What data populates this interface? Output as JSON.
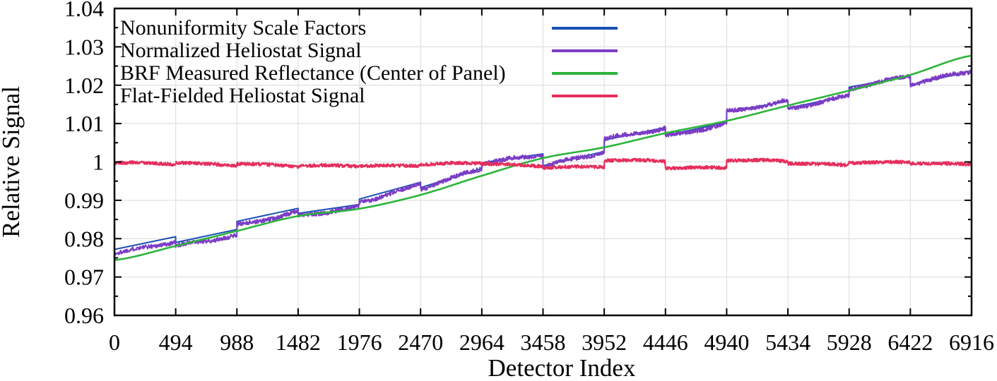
{
  "figure": {
    "background": "#ffffff",
    "text_color": "#000000",
    "grid_color": "#e4e4e4",
    "frame_color": "#000000"
  },
  "chart_data": {
    "type": "line",
    "title": "",
    "xlabel": "Detector Index",
    "ylabel": "Relative Signal",
    "xlim": [
      0,
      6916
    ],
    "ylim": [
      0.96,
      1.04
    ],
    "grid": true,
    "tick_style": "inward-mirrored",
    "legend_position": "top-left-inside",
    "x_ticks": [
      0,
      494,
      988,
      1482,
      1976,
      2470,
      2964,
      3458,
      3952,
      4446,
      4940,
      5434,
      5928,
      6422,
      6916
    ],
    "x_tick_labels": [
      "0",
      "494",
      "988",
      "1482",
      "1976",
      "2470",
      "2964",
      "3458",
      "3952",
      "4446",
      "4940",
      "5434",
      "5928",
      "6422",
      "6916"
    ],
    "y_ticks": [
      0.96,
      0.97,
      0.98,
      0.99,
      1.0,
      1.01,
      1.02,
      1.03,
      1.04
    ],
    "y_tick_labels": [
      "0.96",
      "0.97",
      "0.98",
      "0.99",
      "1",
      "1.01",
      "1.02",
      "1.03",
      "1.04"
    ],
    "y_minor_ticks": [
      0.965,
      0.975,
      0.985,
      0.995,
      1.005,
      1.015,
      1.025,
      1.035
    ],
    "panel_width_detectors": 494,
    "panel_count": 14,
    "series": [
      {
        "name": "Nonuniformity Scale Factors",
        "color": "#1a51b3",
        "style": "piecewise-linear-steps",
        "line_width": 2.0,
        "panel_values": [
          [
            0.9772,
            0.9805
          ],
          [
            0.979,
            0.9824
          ],
          [
            0.9845,
            0.9879
          ],
          [
            0.9866,
            0.9889
          ],
          [
            0.9903,
            0.9947
          ],
          [
            0.9933,
            0.9983
          ],
          [
            0.9998,
            1.0021
          ],
          [
            0.999,
            1.0027
          ],
          [
            1.0057,
            1.009
          ],
          [
            1.0069,
            1.0103
          ],
          [
            1.0131,
            1.0158
          ],
          [
            1.014,
            1.0174
          ],
          [
            1.0195,
            1.0223
          ],
          [
            1.0201,
            1.0237
          ]
        ]
      },
      {
        "name": "Normalized Heliostat Signal",
        "color": "#7d3cc6",
        "style": "noisy-piecewise-linear-steps",
        "line_width": 2.0,
        "noise_amplitude": 0.00055,
        "offset_per_panel": [
          -0.0013,
          -0.0012,
          -0.0009,
          -0.0008,
          -0.0006,
          -0.0003,
          -0.0002,
          -0.0001,
          -0.0001,
          -0.0001,
          -0.0001,
          -0.0001,
          -0.0001,
          -0.0001
        ],
        "panel_values": [
          [
            0.9772,
            0.9805
          ],
          [
            0.979,
            0.9824
          ],
          [
            0.9845,
            0.9879
          ],
          [
            0.9866,
            0.9889
          ],
          [
            0.9903,
            0.9947
          ],
          [
            0.9933,
            0.9983
          ],
          [
            0.9998,
            1.0021
          ],
          [
            0.999,
            1.0027
          ],
          [
            1.0057,
            1.009
          ],
          [
            1.0069,
            1.0103
          ],
          [
            1.0131,
            1.0158
          ],
          [
            1.014,
            1.0174
          ],
          [
            1.0195,
            1.0223
          ],
          [
            1.0201,
            1.0237
          ]
        ]
      },
      {
        "name": "BRF Measured Reflectance (Center of Panel)",
        "color": "#2db43c",
        "style": "smooth",
        "line_width": 2.6,
        "x_points": [
          0,
          494,
          988,
          1482,
          1976,
          2470,
          2964,
          3458,
          3952,
          4446,
          4940,
          5434,
          5928,
          6422,
          6916
        ],
        "y_points": [
          0.9744,
          0.9781,
          0.982,
          0.9859,
          0.9878,
          0.9914,
          0.9964,
          1.001,
          1.0038,
          1.0075,
          1.0107,
          1.0147,
          1.0186,
          1.0227,
          1.0277
        ]
      },
      {
        "name": "Flat-Fielded Heliostat Signal",
        "color": "#e62e5c",
        "style": "noisy-piecewise-linear-steps",
        "line_width": 2.2,
        "noise_amplitude": 0.00042,
        "offset_per_panel": [
          0,
          0,
          0,
          0,
          0,
          0,
          0,
          0,
          0,
          0,
          0,
          0,
          0,
          0
        ],
        "panel_values": [
          [
            0.9997,
            0.9993
          ],
          [
            0.9996,
            0.9993
          ],
          [
            0.9997,
            0.9988
          ],
          [
            0.9987,
            0.9989
          ],
          [
            0.9991,
            0.9992
          ],
          [
            0.9993,
            0.9995
          ],
          [
            0.9995,
            0.999
          ],
          [
            0.9988,
            0.9986
          ],
          [
            1.0003,
            1.0001
          ],
          [
            0.9987,
            0.9986
          ],
          [
            1.0005,
            0.9999
          ],
          [
            0.9997,
            0.9992
          ],
          [
            1.0001,
            0.9997
          ],
          [
            0.9996,
            0.9992
          ]
        ]
      }
    ]
  }
}
